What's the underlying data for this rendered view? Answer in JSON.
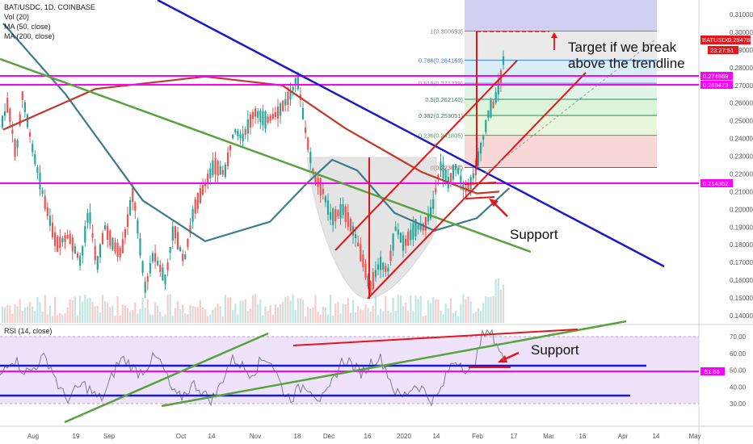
{
  "header": {
    "symbol_line": "BAT/USDC, 1D, COINBASE",
    "vol_label": "Vol (20)",
    "ma1_label": "MA (50, close)",
    "ma2_label": "MA (200, close)",
    "rsi_label": "RSI (14, close)"
  },
  "price_axis": {
    "ticks": [
      "0.310000",
      "0.300000",
      "0.290000",
      "0.280000",
      "0.270000",
      "0.260000",
      "0.250000",
      "0.240000",
      "0.230000",
      "0.220000",
      "0.210000",
      "0.200000",
      "0.190000",
      "0.180000",
      "0.170000",
      "0.160000",
      "0.150000",
      "0.140000"
    ],
    "current_price_tag": "0.294788",
    "countdown_tag": "23:27:51",
    "symbol_tag": "BATUSDC",
    "level_tags": [
      "0.274669",
      "0.269473",
      "0.214352"
    ]
  },
  "rsi_axis": {
    "ticks": [
      "70.00",
      "60.00",
      "50.00",
      "40.00",
      "30.00"
    ],
    "current_tag": "51.66"
  },
  "time_axis": {
    "labels": [
      "Aug",
      "19",
      "Sep",
      "Oct",
      "14",
      "Nov",
      "18",
      "Dec",
      "16",
      "2020",
      "14",
      "Feb",
      "17",
      "Mar",
      "16",
      "Apr",
      "14",
      "May"
    ]
  },
  "fib": [
    {
      "label": "1(0.300653)"
    },
    {
      "label": "0.786(0.284169)"
    },
    {
      "label": "0.618(0.271229)"
    },
    {
      "label": "0.5(0.262140)"
    },
    {
      "label": "0.382(0.253051)"
    },
    {
      "label": "0.236(0.241805)"
    },
    {
      "label": "0(0.223627)"
    }
  ],
  "annotations": {
    "target_line1": "Target if we break",
    "target_line2": "above the trendline",
    "support_price": "Support",
    "support_rsi": "Support"
  },
  "colors": {
    "up": "#26a69a",
    "down": "#ef5350",
    "ma50": "#3a7b8c",
    "ma200": "#c0392b",
    "magenta": "#ff00ff",
    "blue": "#0000cc",
    "green": "#5aa23e",
    "red": "#e8141a"
  },
  "chart_data": {
    "type": "candlestick",
    "title": "BAT/USDC, 1D, COINBASE",
    "ylim": [
      0.135,
      0.317
    ],
    "x_range": [
      "2019-07-26",
      "2020-05-15"
    ],
    "ma_series": [
      {
        "name": "MA (50, close)",
        "points": [
          [
            "2019-07-26",
            0.305
          ],
          [
            "2019-08-20",
            0.265
          ],
          [
            "2019-09-20",
            0.205
          ],
          [
            "2019-10-15",
            0.182
          ],
          [
            "2019-11-10",
            0.193
          ],
          [
            "2019-11-25",
            0.215
          ],
          [
            "2019-12-05",
            0.228
          ],
          [
            "2019-12-15",
            0.222
          ],
          [
            "2019-12-30",
            0.198
          ],
          [
            "2020-01-15",
            0.188
          ],
          [
            "2020-02-01",
            0.195
          ],
          [
            "2020-02-14",
            0.212
          ]
        ]
      },
      {
        "name": "MA (200, close)",
        "points": [
          [
            "2019-07-26",
            0.245
          ],
          [
            "2019-09-01",
            0.268
          ],
          [
            "2019-10-15",
            0.275
          ],
          [
            "2019-11-15",
            0.27
          ],
          [
            "2019-12-10",
            0.246
          ],
          [
            "2020-01-10",
            0.221
          ],
          [
            "2020-02-01",
            0.209
          ],
          [
            "2020-02-10",
            0.21
          ]
        ]
      }
    ],
    "horizontal_levels": [
      0.274669,
      0.269473,
      0.214352
    ],
    "fib_retracement": {
      "high": 0.300653,
      "low": 0.223627,
      "levels": [
        1,
        0.786,
        0.618,
        0.5,
        0.382,
        0.236,
        0
      ]
    },
    "current_price": 0.294788,
    "rsi": {
      "name": "RSI (14, close)",
      "ylim": [
        25,
        75
      ],
      "current": 51.66,
      "bands": [
        70,
        30
      ]
    }
  }
}
